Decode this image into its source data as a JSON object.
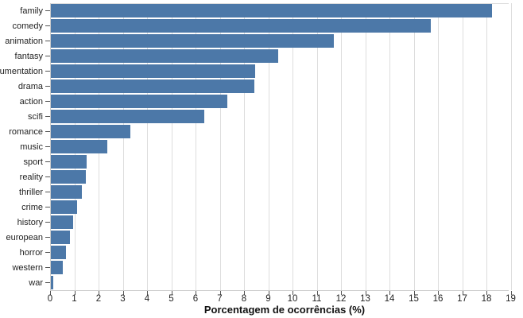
{
  "chart_data": {
    "type": "bar",
    "orientation": "horizontal",
    "title": "",
    "xlabel": "Porcentagem de ocorrências (%)",
    "ylabel": "",
    "categories": [
      "family",
      "comedy",
      "animation",
      "fantasy",
      "umentation",
      "drama",
      "action",
      "scifi",
      "romance",
      "music",
      "sport",
      "reality",
      "thriller",
      "crime",
      "history",
      "european",
      "horror",
      "western",
      "war"
    ],
    "values": [
      18.2,
      15.7,
      11.7,
      9.4,
      8.45,
      8.4,
      7.3,
      6.35,
      3.3,
      2.35,
      1.5,
      1.45,
      1.3,
      1.1,
      0.95,
      0.8,
      0.65,
      0.5,
      0.1
    ],
    "x_ticks": [
      0,
      1,
      2,
      3,
      4,
      5,
      6,
      7,
      8,
      9,
      10,
      11,
      12,
      13,
      14,
      15,
      16,
      17,
      18,
      19
    ],
    "xlim": [
      0,
      19
    ],
    "grid": true,
    "legend": "none",
    "bar_color": "#4c78a8"
  }
}
